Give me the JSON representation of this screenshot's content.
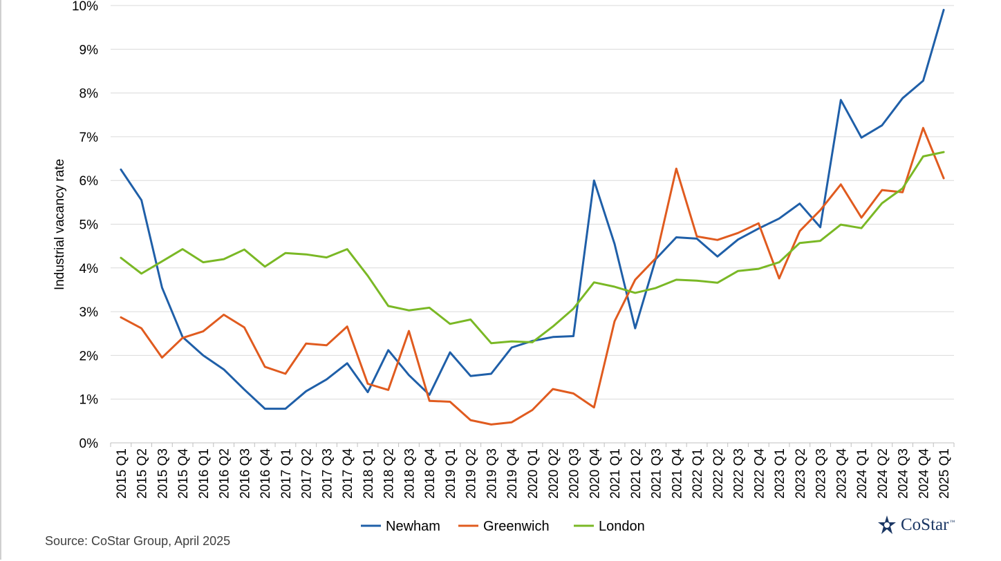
{
  "chart_data": {
    "type": "line",
    "title": "",
    "xlabel": "",
    "ylabel": "Industrial vacancy rate",
    "ylim": [
      0,
      10
    ],
    "yticks": [
      "0%",
      "1%",
      "2%",
      "3%",
      "4%",
      "5%",
      "6%",
      "7%",
      "8%",
      "9%",
      "10%"
    ],
    "grid": true,
    "legend_position": "bottom",
    "categories": [
      "2015 Q1",
      "2015 Q2",
      "2015 Q3",
      "2015 Q4",
      "2016 Q1",
      "2016 Q2",
      "2016 Q3",
      "2016 Q4",
      "2017 Q1",
      "2017 Q2",
      "2017 Q3",
      "2017 Q4",
      "2018 Q1",
      "2018 Q2",
      "2018 Q3",
      "2018 Q4",
      "2019 Q1",
      "2019 Q2",
      "2019 Q3",
      "2019 Q4",
      "2020 Q1",
      "2020 Q2",
      "2020 Q3",
      "2020 Q4",
      "2021 Q1",
      "2021 Q2",
      "2021 Q3",
      "2021 Q4",
      "2022 Q1",
      "2022 Q2",
      "2022 Q3",
      "2022 Q4",
      "2023 Q1",
      "2023 Q2",
      "2023 Q3",
      "2023 Q4",
      "2024 Q1",
      "2024 Q2",
      "2024 Q3",
      "2024 Q4",
      "2025 Q1"
    ],
    "series": [
      {
        "name": "Newham",
        "color": "#1f5fa8",
        "values": [
          6.25,
          5.55,
          3.55,
          2.42,
          2.0,
          1.68,
          1.22,
          0.78,
          0.78,
          1.18,
          1.45,
          1.82,
          1.16,
          2.12,
          1.55,
          1.1,
          2.07,
          1.53,
          1.58,
          2.18,
          2.33,
          2.42,
          2.44,
          6.0,
          4.55,
          2.62,
          4.2,
          4.7,
          4.67,
          4.26,
          4.65,
          4.9,
          5.13,
          5.47,
          4.93,
          7.84,
          6.98,
          7.26,
          7.88,
          8.28,
          9.9
        ]
      },
      {
        "name": "Greenwich",
        "color": "#e05b1f",
        "values": [
          2.87,
          2.62,
          1.95,
          2.4,
          2.55,
          2.93,
          2.64,
          1.74,
          1.58,
          2.27,
          2.23,
          2.66,
          1.35,
          1.21,
          2.56,
          0.96,
          0.94,
          0.52,
          0.42,
          0.47,
          0.75,
          1.23,
          1.13,
          0.81,
          2.78,
          3.73,
          4.22,
          6.27,
          4.72,
          4.64,
          4.8,
          5.02,
          3.76,
          4.84,
          5.32,
          5.91,
          5.15,
          5.78,
          5.73,
          7.2,
          6.05
        ]
      },
      {
        "name": "London",
        "color": "#7ab825",
        "values": [
          4.23,
          3.87,
          4.15,
          4.43,
          4.13,
          4.2,
          4.42,
          4.03,
          4.34,
          4.31,
          4.24,
          4.43,
          3.82,
          3.13,
          3.03,
          3.09,
          2.72,
          2.82,
          2.28,
          2.32,
          2.3,
          2.66,
          3.07,
          3.67,
          3.57,
          3.43,
          3.54,
          3.73,
          3.71,
          3.66,
          3.93,
          3.98,
          4.13,
          4.57,
          4.62,
          4.99,
          4.91,
          5.48,
          5.82,
          6.55,
          6.65
        ]
      }
    ]
  },
  "source": "Source: CoStar Group, April 2025",
  "logo": {
    "text": "CoStar",
    "mark": "™"
  }
}
